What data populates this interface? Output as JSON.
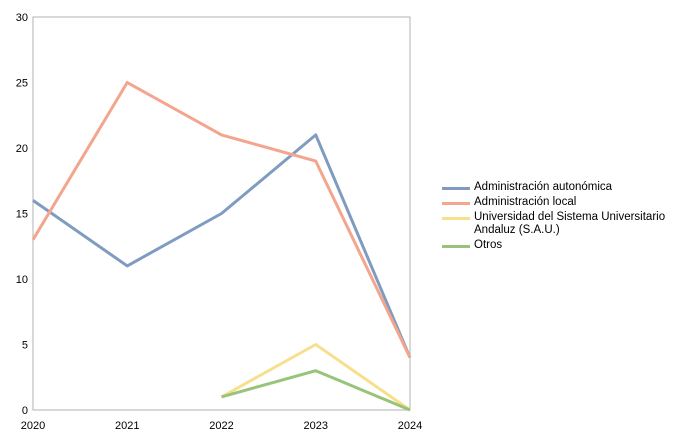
{
  "chart_data": {
    "type": "line",
    "categories": [
      "2020",
      "2021",
      "2022",
      "2023",
      "2024"
    ],
    "ylim": [
      0,
      30
    ],
    "yticks": [
      0,
      5,
      10,
      15,
      20,
      25,
      30
    ],
    "grid": false,
    "legend_position": "right",
    "series": [
      {
        "name": "Administración autonómica",
        "color": "#7f9cc0",
        "values": [
          16,
          11,
          15,
          21,
          4
        ]
      },
      {
        "name": "Administración local",
        "color": "#f3a58e",
        "values": [
          13,
          25,
          21,
          19,
          4
        ]
      },
      {
        "name": "Universidad del Sistema Universitario Andaluz (S.A.U.)",
        "color": "#f7e08c",
        "values": [
          null,
          null,
          1,
          5,
          0
        ]
      },
      {
        "name": "Otros",
        "color": "#98c47a",
        "values": [
          null,
          null,
          1,
          3,
          0
        ]
      }
    ]
  }
}
